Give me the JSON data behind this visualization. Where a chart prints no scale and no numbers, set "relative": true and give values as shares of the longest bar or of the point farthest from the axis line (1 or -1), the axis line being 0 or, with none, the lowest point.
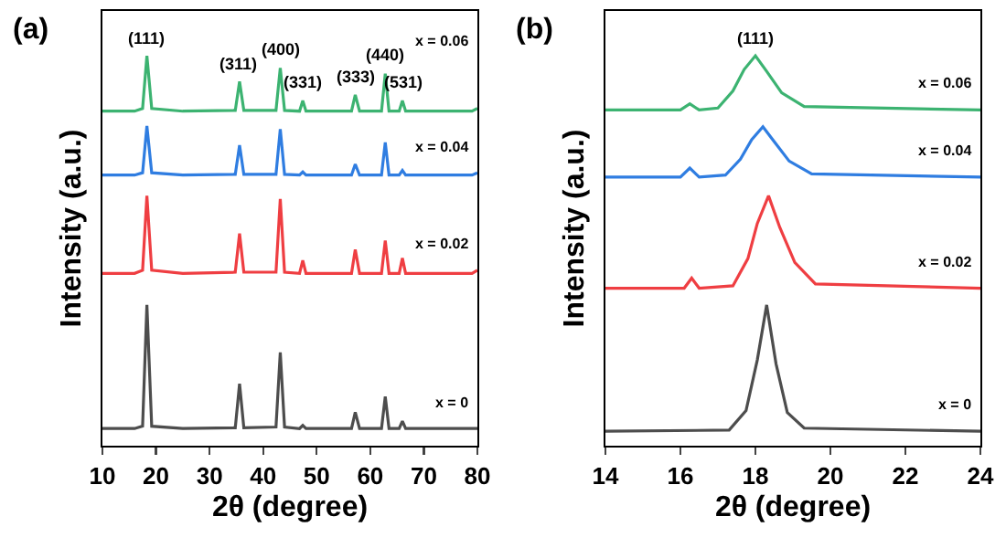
{
  "chart_data": [
    {
      "type": "line",
      "relative": true,
      "xlabel": "2θ (degree)",
      "ylabel": "Intensity (a.u.)",
      "xlim": [
        10,
        80
      ],
      "xticks": [
        10,
        20,
        30,
        40,
        50,
        60,
        70,
        80
      ],
      "legend": false,
      "grid": false,
      "tick_labels": "x",
      "x": [
        10,
        16,
        17.5,
        18.3,
        19.2,
        25,
        34.8,
        35.6,
        36.4,
        42.4,
        43.2,
        44,
        46.8,
        47.4,
        48,
        56.5,
        57.2,
        58,
        62.1,
        62.8,
        63.5,
        65.4,
        66,
        66.6,
        79,
        80
      ],
      "series": [
        {
          "name": "x = 0",
          "color": "#4d4d4d",
          "values": [
            0.044,
            0.044,
            0.05,
            0.361,
            0.05,
            0.044,
            0.046,
            0.159,
            0.046,
            0.048,
            0.239,
            0.048,
            0.044,
            0.052,
            0.044,
            0.044,
            0.086,
            0.044,
            0.044,
            0.126,
            0.044,
            0.044,
            0.063,
            0.044,
            0.044,
            0.044
          ]
        },
        {
          "name": "x = 0.02",
          "color": "#ef3e42",
          "values": [
            0.442,
            0.442,
            0.45,
            0.641,
            0.45,
            0.442,
            0.445,
            0.544,
            0.445,
            0.445,
            0.633,
            0.445,
            0.442,
            0.475,
            0.442,
            0.442,
            0.503,
            0.442,
            0.442,
            0.526,
            0.442,
            0.442,
            0.481,
            0.442,
            0.442,
            0.45
          ]
        },
        {
          "name": "x = 0.04",
          "color": "#2f7de1",
          "values": [
            0.694,
            0.694,
            0.7,
            0.82,
            0.7,
            0.694,
            0.696,
            0.771,
            0.696,
            0.696,
            0.812,
            0.696,
            0.694,
            0.702,
            0.694,
            0.694,
            0.722,
            0.694,
            0.694,
            0.778,
            0.694,
            0.694,
            0.706,
            0.694,
            0.694,
            0.7
          ]
        },
        {
          "name": "x = 0.06",
          "color": "#3cb371",
          "values": [
            0.858,
            0.858,
            0.865,
            1,
            0.865,
            0.858,
            0.86,
            0.934,
            0.86,
            0.86,
            0.969,
            0.86,
            0.858,
            0.885,
            0.858,
            0.858,
            0.9,
            0.858,
            0.858,
            0.954,
            0.858,
            0.858,
            0.885,
            0.858,
            0.858,
            0.865
          ]
        }
      ],
      "annotations": [
        "(a)",
        {
          "text": "(111)",
          "x": 18.3,
          "y": 1
        },
        {
          "text": "(311)",
          "x": 35.6,
          "y": 0.934
        },
        {
          "text": "(400)",
          "x": 43.2,
          "y": 0.969
        },
        {
          "text": "(331)",
          "x": 47.4,
          "y": 0.885
        },
        {
          "text": "(333)",
          "x": 57.2,
          "y": 0.9
        },
        {
          "text": "(440)",
          "x": 62.8,
          "y": 0.954
        },
        {
          "text": "(531)",
          "x": 66,
          "y": 0.885
        }
      ]
    },
    {
      "type": "line",
      "relative": true,
      "xlabel": "2θ (degree)",
      "ylabel": "Intensity (a.u.)",
      "xlim": [
        14,
        24
      ],
      "xticks": [
        14,
        16,
        18,
        20,
        22,
        24
      ],
      "legend": false,
      "grid": false,
      "tick_labels": "x",
      "series": [
        {
          "name": "x = 0",
          "color": "#4d4d4d",
          "x": [
            14,
            17.3,
            17.75,
            18.05,
            18.3,
            18.55,
            18.85,
            19.3,
            24
          ],
          "values": [
            0.037,
            0.04,
            0.09,
            0.22,
            0.361,
            0.21,
            0.085,
            0.045,
            0.037
          ]
        },
        {
          "name": "x = 0.02",
          "color": "#ef3e42",
          "x": [
            14,
            16.1,
            16.3,
            16.5,
            17.4,
            17.8,
            18.05,
            18.35,
            18.65,
            19.05,
            19.6,
            24
          ],
          "values": [
            0.404,
            0.404,
            0.43,
            0.404,
            0.41,
            0.48,
            0.57,
            0.641,
            0.56,
            0.47,
            0.415,
            0.404
          ]
        },
        {
          "name": "x = 0.04",
          "color": "#2f7de1",
          "x": [
            14,
            16,
            16.25,
            16.5,
            17.2,
            17.6,
            17.9,
            18.2,
            18.5,
            18.9,
            19.5,
            24
          ],
          "values": [
            0.689,
            0.689,
            0.712,
            0.689,
            0.694,
            0.735,
            0.785,
            0.818,
            0.78,
            0.73,
            0.697,
            0.689
          ]
        },
        {
          "name": "x = 0.06",
          "color": "#3cb371",
          "x": [
            14,
            16,
            16.25,
            16.5,
            17,
            17.4,
            17.7,
            18,
            18.3,
            18.7,
            19.3,
            24
          ],
          "values": [
            0.861,
            0.861,
            0.877,
            0.861,
            0.866,
            0.91,
            0.965,
            1,
            0.96,
            0.905,
            0.87,
            0.861
          ]
        }
      ],
      "annotations": [
        "(b)",
        {
          "text": "(111)",
          "x": 18.0,
          "y": 1
        }
      ]
    }
  ]
}
